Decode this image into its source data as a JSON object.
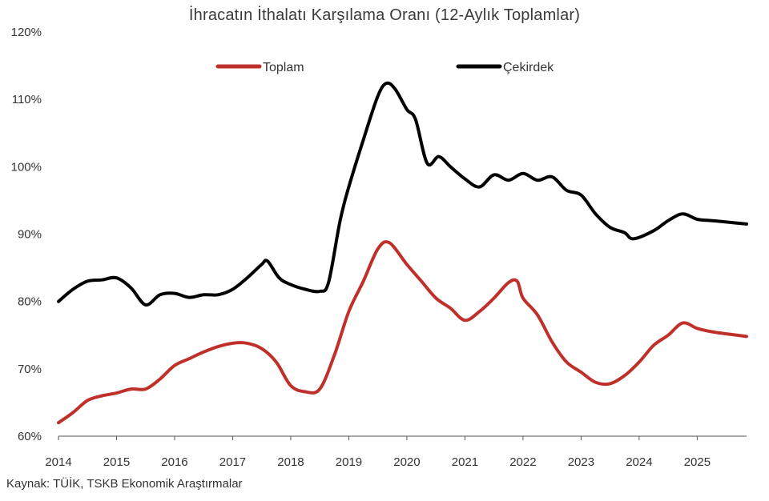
{
  "chart_data": {
    "type": "line",
    "title": "İhracatın İthalatı Karşılama Oranı (12-Aylık Toplamlar)",
    "source": "Kaynak: TÜİK, TSKB Ekonomik Araştırmalar",
    "ylim": [
      60,
      120
    ],
    "y_ticks": [
      "60%",
      "70%",
      "80%",
      "90%",
      "100%",
      "110%",
      "120%"
    ],
    "x_range": [
      2014,
      2025.85
    ],
    "x_ticks": [
      "2014",
      "2015",
      "2016",
      "2017",
      "2018",
      "2019",
      "2020",
      "2021",
      "2022",
      "2023",
      "2024",
      "2025"
    ],
    "grid": false,
    "legend": "top",
    "series": [
      {
        "name": "Toplam",
        "color": "#C0302B",
        "points": [
          [
            2014.0,
            62.0
          ],
          [
            2014.25,
            63.5
          ],
          [
            2014.5,
            65.3
          ],
          [
            2014.75,
            66.0
          ],
          [
            2015.0,
            66.4
          ],
          [
            2015.25,
            67.0
          ],
          [
            2015.5,
            67.0
          ],
          [
            2015.75,
            68.5
          ],
          [
            2016.0,
            70.5
          ],
          [
            2016.25,
            71.5
          ],
          [
            2016.5,
            72.5
          ],
          [
            2016.75,
            73.3
          ],
          [
            2017.0,
            73.8
          ],
          [
            2017.25,
            73.8
          ],
          [
            2017.5,
            73.0
          ],
          [
            2017.75,
            71.0
          ],
          [
            2018.0,
            67.5
          ],
          [
            2018.25,
            66.6
          ],
          [
            2018.5,
            67.0
          ],
          [
            2018.75,
            72.0
          ],
          [
            2019.0,
            78.5
          ],
          [
            2019.25,
            83.0
          ],
          [
            2019.5,
            87.8
          ],
          [
            2019.7,
            88.7
          ],
          [
            2020.0,
            85.5
          ],
          [
            2020.25,
            83.0
          ],
          [
            2020.5,
            80.5
          ],
          [
            2020.75,
            79.0
          ],
          [
            2021.0,
            77.2
          ],
          [
            2021.25,
            78.5
          ],
          [
            2021.5,
            80.5
          ],
          [
            2021.75,
            82.8
          ],
          [
            2021.9,
            83.0
          ],
          [
            2022.0,
            80.5
          ],
          [
            2022.25,
            78.0
          ],
          [
            2022.5,
            74.0
          ],
          [
            2022.75,
            71.0
          ],
          [
            2023.0,
            69.5
          ],
          [
            2023.25,
            68.0
          ],
          [
            2023.5,
            67.8
          ],
          [
            2023.75,
            69.0
          ],
          [
            2024.0,
            71.0
          ],
          [
            2024.25,
            73.5
          ],
          [
            2024.5,
            75.0
          ],
          [
            2024.75,
            76.8
          ],
          [
            2025.0,
            76.0
          ],
          [
            2025.25,
            75.5
          ],
          [
            2025.5,
            75.2
          ],
          [
            2025.85,
            74.8
          ]
        ]
      },
      {
        "name": "Çekirdek",
        "color": "#000000",
        "points": [
          [
            2014.0,
            80.0
          ],
          [
            2014.25,
            81.8
          ],
          [
            2014.5,
            83.0
          ],
          [
            2014.75,
            83.2
          ],
          [
            2015.0,
            83.5
          ],
          [
            2015.25,
            82.0
          ],
          [
            2015.5,
            79.5
          ],
          [
            2015.75,
            81.0
          ],
          [
            2016.0,
            81.2
          ],
          [
            2016.25,
            80.6
          ],
          [
            2016.5,
            81.0
          ],
          [
            2016.75,
            81.0
          ],
          [
            2017.0,
            81.8
          ],
          [
            2017.25,
            83.5
          ],
          [
            2017.5,
            85.5
          ],
          [
            2017.6,
            86.0
          ],
          [
            2017.8,
            83.5
          ],
          [
            2018.0,
            82.5
          ],
          [
            2018.25,
            81.8
          ],
          [
            2018.5,
            81.5
          ],
          [
            2018.65,
            82.8
          ],
          [
            2018.85,
            92.0
          ],
          [
            2019.0,
            97.0
          ],
          [
            2019.25,
            104.0
          ],
          [
            2019.5,
            110.5
          ],
          [
            2019.65,
            112.4
          ],
          [
            2019.8,
            111.5
          ],
          [
            2020.0,
            108.5
          ],
          [
            2020.15,
            107.0
          ],
          [
            2020.35,
            100.5
          ],
          [
            2020.55,
            101.5
          ],
          [
            2020.75,
            100.0
          ],
          [
            2021.0,
            98.2
          ],
          [
            2021.25,
            97.0
          ],
          [
            2021.5,
            98.8
          ],
          [
            2021.75,
            98.0
          ],
          [
            2022.0,
            99.0
          ],
          [
            2022.25,
            98.0
          ],
          [
            2022.5,
            98.5
          ],
          [
            2022.75,
            96.5
          ],
          [
            2023.0,
            95.8
          ],
          [
            2023.25,
            93.0
          ],
          [
            2023.5,
            91.0
          ],
          [
            2023.75,
            90.2
          ],
          [
            2023.9,
            89.3
          ],
          [
            2024.25,
            90.5
          ],
          [
            2024.5,
            92.0
          ],
          [
            2024.75,
            93.0
          ],
          [
            2025.0,
            92.2
          ],
          [
            2025.25,
            92.0
          ],
          [
            2025.5,
            91.8
          ],
          [
            2025.85,
            91.5
          ]
        ]
      }
    ]
  }
}
